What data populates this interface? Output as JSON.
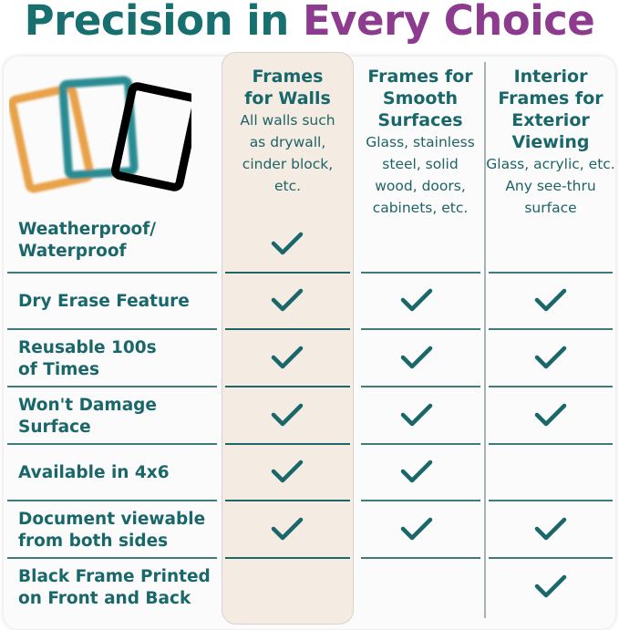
{
  "title": {
    "part1": "Precision in",
    "part2": "Every Choice"
  },
  "columns": [
    {
      "heading": [
        "Frames",
        "for Walls"
      ],
      "sub": [
        "All walls such",
        "as drywall,",
        "cinder block,",
        "etc."
      ]
    },
    {
      "heading": [
        "Frames for",
        "Smooth",
        "Surfaces"
      ],
      "sub": [
        "Glass, stainless",
        "steel, solid",
        "wood, doors,",
        "cabinets, etc."
      ]
    },
    {
      "heading": [
        "Interior",
        "Frames for",
        "Exterior",
        "Viewing"
      ],
      "sub": [
        "Glass, acrylic, etc.",
        "Any see-thru",
        "surface"
      ]
    }
  ],
  "rows": [
    {
      "label": [
        "Weatherproof/",
        "Waterproof"
      ],
      "checks": [
        true,
        false,
        false
      ]
    },
    {
      "label": [
        "Dry Erase Feature"
      ],
      "checks": [
        true,
        true,
        true
      ]
    },
    {
      "label": [
        "Reusable 100s",
        "of Times"
      ],
      "checks": [
        true,
        true,
        true
      ]
    },
    {
      "label": [
        "Won't Damage",
        "Surface"
      ],
      "checks": [
        true,
        true,
        true
      ]
    },
    {
      "label": [
        "Available in 4x6"
      ],
      "checks": [
        true,
        true,
        false
      ]
    },
    {
      "label": [
        "Document viewable",
        "from both sides"
      ],
      "checks": [
        true,
        true,
        true
      ]
    },
    {
      "label": [
        "Black Frame Printed",
        "on Front and Back"
      ],
      "checks": [
        false,
        false,
        true
      ]
    }
  ],
  "colors": {
    "teal": "#19676a",
    "purple": "#8d3b8f",
    "highlight": "#f4ece3",
    "orange": "#e8a24a"
  }
}
